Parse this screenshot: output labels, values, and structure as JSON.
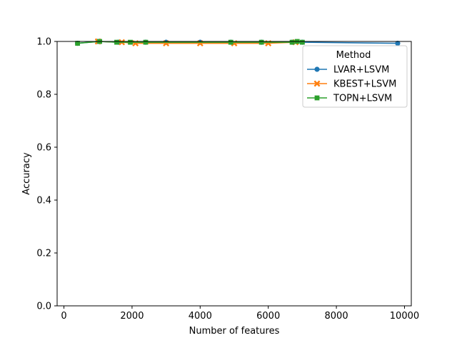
{
  "chart_data": {
    "type": "line",
    "xlabel": "Number of features",
    "ylabel": "Accuracy",
    "xlim": [
      -200,
      10200
    ],
    "ylim": [
      0.0,
      1.0
    ],
    "xticks": [
      0,
      2000,
      4000,
      6000,
      8000,
      10000
    ],
    "xtick_labels": [
      "0",
      "2000",
      "4000",
      "6000",
      "8000",
      "10000"
    ],
    "yticks": [
      0.0,
      0.2,
      0.4,
      0.6,
      0.8,
      1.0
    ],
    "ytick_labels": [
      "0.0",
      "0.2",
      "0.4",
      "0.6",
      "0.8",
      "1.0"
    ],
    "grid": false,
    "legend": {
      "title": "Method",
      "placement": "top-right"
    },
    "series": [
      {
        "name": "LVAR+LSVM",
        "color": "#1f77b4",
        "marker": "circle",
        "x": [
          400,
          1000,
          1600,
          2400,
          3000,
          4000,
          4900,
          5800,
          6700,
          7000,
          9800
        ],
        "y": [
          0.993,
          1.0,
          0.997,
          0.997,
          0.997,
          0.997,
          0.997,
          0.997,
          0.997,
          0.997,
          0.993
        ]
      },
      {
        "name": "KBEST+LSVM",
        "color": "#ff7f0e",
        "marker": "x",
        "x": [
          1000,
          1700,
          2100,
          3000,
          4000,
          5000,
          6000,
          6800
        ],
        "y": [
          1.0,
          0.997,
          0.993,
          0.993,
          0.993,
          0.993,
          0.993,
          0.997
        ]
      },
      {
        "name": "TOPN+LSVM",
        "color": "#2ca02c",
        "marker": "square",
        "x": [
          400,
          1050,
          1550,
          1950,
          2400,
          4900,
          5800,
          6700,
          6850,
          7000
        ],
        "y": [
          0.993,
          1.0,
          0.997,
          0.997,
          0.997,
          0.997,
          0.997,
          0.997,
          1.0,
          0.997
        ]
      }
    ]
  }
}
